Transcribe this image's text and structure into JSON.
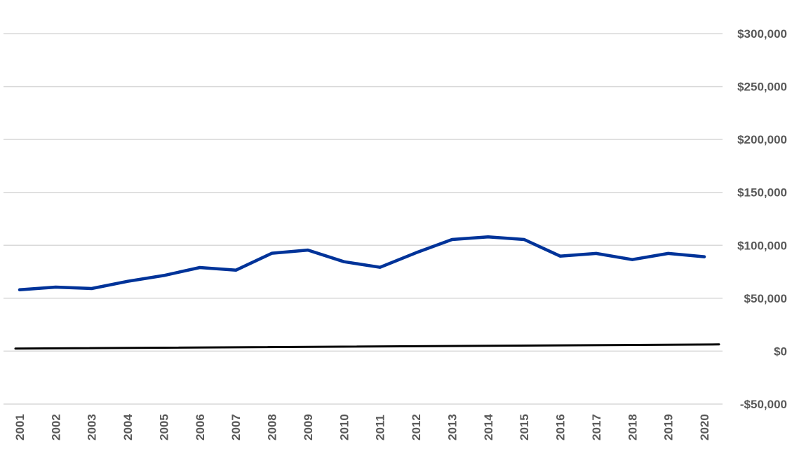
{
  "chart_data": {
    "type": "line",
    "title": "",
    "xlabel": "",
    "ylabel": "",
    "categories": [
      "2001",
      "2002",
      "2003",
      "2004",
      "2005",
      "2006",
      "2007",
      "2008",
      "2009",
      "2010",
      "2011",
      "2012",
      "2013",
      "2014",
      "2015",
      "2016",
      "2017",
      "2018",
      "2019",
      "2020"
    ],
    "ylim": [
      -50000,
      300000
    ],
    "y_ticks": [
      300000,
      250000,
      200000,
      150000,
      100000,
      50000,
      0,
      -50000
    ],
    "y_tick_labels": [
      "$300,000",
      "$250,000",
      "$200,000",
      "$150,000",
      "$100,000",
      "$50,000",
      "$0",
      "-$50,000"
    ],
    "y_axis_position": "right",
    "x_tick_rotation": "vertical",
    "grid": true,
    "legend": "none",
    "series": [
      {
        "color": "#003399",
        "values": [
          58000,
          60500,
          59200,
          66000,
          71500,
          79000,
          76500,
          92500,
          95500,
          84500,
          79200,
          93000,
          105500,
          108000,
          105500,
          89800,
          92300,
          86500,
          92300,
          89200
        ]
      },
      {
        "color": "#000000",
        "values": [
          2500,
          2700,
          2900,
          3100,
          3300,
          3500,
          3700,
          3900,
          4100,
          4300,
          4500,
          4700,
          4900,
          5100,
          5300,
          5500,
          5700,
          5900,
          6100,
          6300
        ]
      }
    ]
  }
}
